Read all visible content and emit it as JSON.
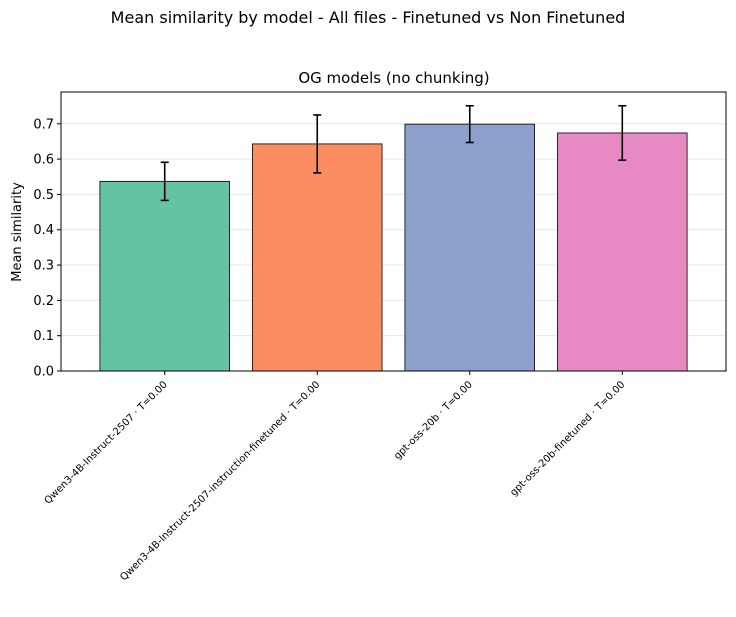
{
  "figure": {
    "suptitle": "Mean similarity by model - All files - Finetuned vs Non Finetuned"
  },
  "chart_data": {
    "type": "bar",
    "title": "OG models (no chunking)",
    "xlabel": "",
    "ylabel": "Mean similarity",
    "ylim": [
      0,
      0.79
    ],
    "yticks": [
      0.0,
      0.1,
      0.2,
      0.3,
      0.4,
      0.5,
      0.6,
      0.7
    ],
    "ytick_labels": [
      "0.0",
      "0.1",
      "0.2",
      "0.3",
      "0.4",
      "0.5",
      "0.6",
      "0.7"
    ],
    "grid": "y",
    "categories": [
      "Qwen3-4B-Instruct-2507 · T=0.00",
      "Qwen3-4B-Instruct-2507-instruction-finetuned · T=0.00",
      "gpt-oss-20b · T=0.00",
      "gpt-oss-20b-finetuned · T=0.00"
    ],
    "values": [
      0.537,
      0.643,
      0.699,
      0.674
    ],
    "errors": [
      0.054,
      0.082,
      0.052,
      0.077
    ],
    "colors": [
      "#66c2a5",
      "#fc8d62",
      "#8da0cb",
      "#e78ac3"
    ]
  }
}
